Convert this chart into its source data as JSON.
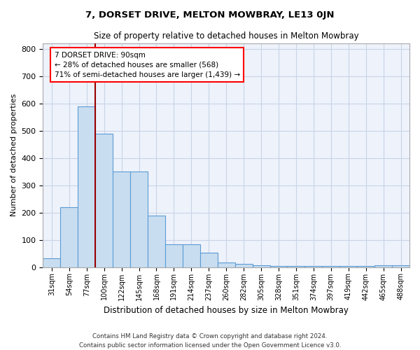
{
  "title": "7, DORSET DRIVE, MELTON MOWBRAY, LE13 0JN",
  "subtitle": "Size of property relative to detached houses in Melton Mowbray",
  "xlabel": "Distribution of detached houses by size in Melton Mowbray",
  "ylabel": "Number of detached properties",
  "bar_color": "#c8ddf0",
  "bar_edge_color": "#5b9bd5",
  "categories": [
    "31sqm",
    "54sqm",
    "77sqm",
    "100sqm",
    "122sqm",
    "145sqm",
    "168sqm",
    "191sqm",
    "214sqm",
    "237sqm",
    "260sqm",
    "282sqm",
    "305sqm",
    "328sqm",
    "351sqm",
    "374sqm",
    "397sqm",
    "419sqm",
    "442sqm",
    "465sqm",
    "488sqm"
  ],
  "values": [
    32,
    220,
    590,
    490,
    350,
    350,
    188,
    85,
    85,
    52,
    18,
    13,
    8,
    5,
    5,
    5,
    3,
    3,
    5,
    7,
    7
  ],
  "ylim": [
    0,
    820
  ],
  "yticks": [
    0,
    100,
    200,
    300,
    400,
    500,
    600,
    700,
    800
  ],
  "annotation_text": "7 DORSET DRIVE: 90sqm\n← 28% of detached houses are smaller (568)\n71% of semi-detached houses are larger (1,439) →",
  "annotation_box_color": "white",
  "annotation_box_edge_color": "red",
  "grid_color": "#c8d4e8",
  "background_color": "#eef2fb",
  "footer_line1": "Contains HM Land Registry data © Crown copyright and database right 2024.",
  "footer_line2": "Contains public sector information licensed under the Open Government Licence v3.0."
}
